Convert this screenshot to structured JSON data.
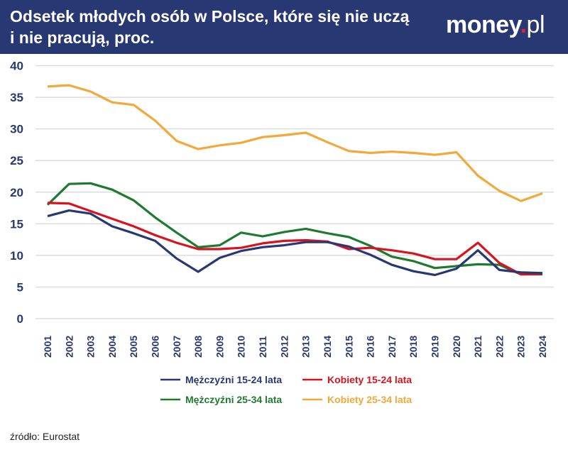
{
  "header": {
    "title_line1": "Odsetek młodych osób w Polsce, które się nie uczą",
    "title_line2": "i nie pracują, proc.",
    "logo": "money.pl"
  },
  "source": "źródło: Eurostat",
  "colors": {
    "header_bg": "#283872",
    "axis_text": "#283872",
    "grid": "#dcdcdc"
  },
  "chart_data": {
    "type": "line",
    "title": "Odsetek młodych osób w Polsce, które się nie uczą i nie pracują, proc.",
    "ylim": [
      0,
      40
    ],
    "yticks": [
      "0",
      "5",
      "10",
      "15",
      "20",
      "25",
      "30",
      "35",
      "40"
    ],
    "grid": true,
    "legend_placement": "bottom",
    "x": [
      "2001",
      "2002",
      "2003",
      "2004",
      "2005",
      "2006",
      "2007",
      "2008",
      "2009",
      "2010",
      "2011",
      "2012",
      "2013",
      "2014",
      "2015",
      "2016",
      "2017",
      "2018",
      "2019",
      "2020",
      "2021",
      "2022",
      "2023",
      "2024"
    ],
    "series": [
      {
        "name": "Mężczyźni 15-24 lata",
        "color": "#283872",
        "values": [
          16.2,
          17.1,
          16.6,
          14.6,
          13.5,
          12.3,
          9.5,
          7.4,
          9.6,
          10.7,
          11.3,
          11.6,
          12.1,
          12.1,
          11.4,
          10.1,
          8.5,
          7.5,
          6.9,
          7.9,
          10.8,
          7.7,
          7.3,
          7.2
        ]
      },
      {
        "name": "Kobiety 15-24 lata",
        "color": "#d7141e",
        "values": [
          18.3,
          18.2,
          17.0,
          15.8,
          14.6,
          13.2,
          12.0,
          11.0,
          11.0,
          11.2,
          11.9,
          12.3,
          12.4,
          12.2,
          11.0,
          11.2,
          10.8,
          10.3,
          9.4,
          9.4,
          12.0,
          8.8,
          7.0,
          7.1
        ]
      },
      {
        "name": "Mężczyźni 25-34 lata",
        "color": "#1e7a2e",
        "values": [
          18.0,
          21.3,
          21.4,
          20.4,
          18.7,
          16.0,
          13.6,
          11.3,
          11.6,
          13.6,
          13.0,
          13.7,
          14.2,
          13.5,
          12.9,
          11.5,
          9.8,
          9.1,
          8.0,
          8.3,
          8.6,
          8.5,
          7.0,
          7.0
        ]
      },
      {
        "name": "Kobiety 25-34 lata",
        "color": "#f2a83a",
        "values": [
          36.7,
          36.9,
          35.9,
          34.2,
          33.8,
          31.3,
          28.1,
          26.8,
          27.4,
          27.8,
          28.7,
          29.0,
          29.4,
          27.9,
          26.5,
          26.2,
          26.4,
          26.2,
          25.9,
          26.3,
          22.6,
          20.2,
          18.6,
          19.8
        ]
      }
    ]
  }
}
